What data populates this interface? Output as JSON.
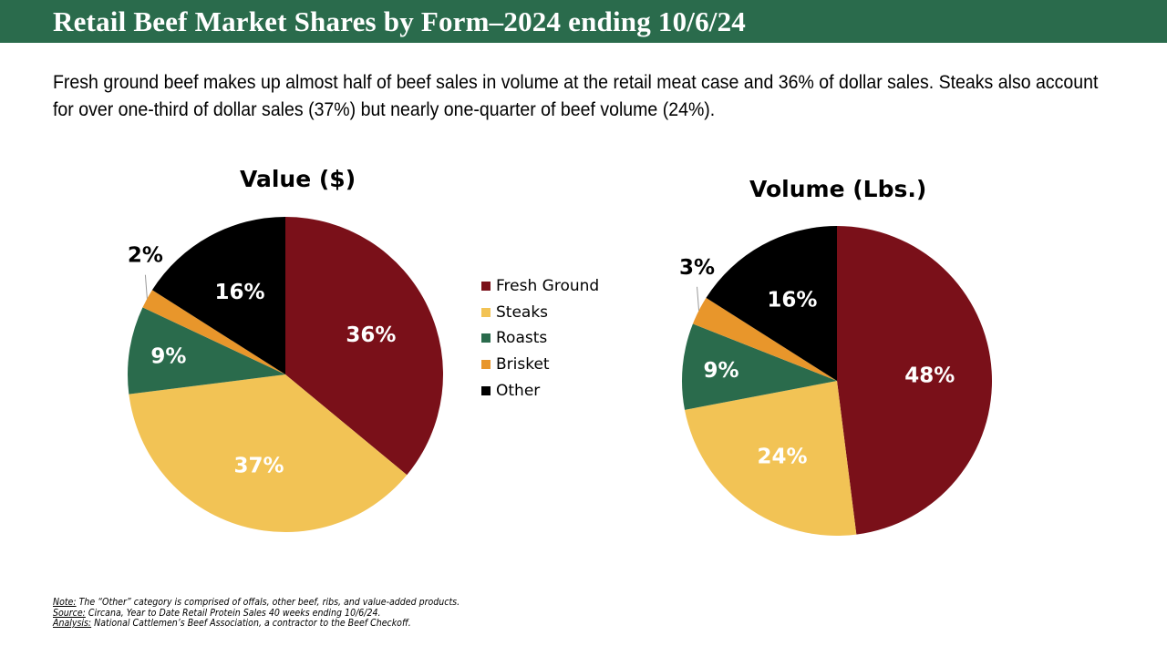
{
  "header": {
    "title": "Retail Beef Market Shares by Form–2024 ending 10/6/24"
  },
  "subtitle": "Fresh ground beef makes up almost half of beef sales in volume at the retail meat case and 36% of dollar sales.  Steaks also account for over one-third of dollar sales (37%) but nearly one-quarter of beef volume (24%).",
  "chart_data": [
    {
      "type": "pie",
      "title": "Value ($)",
      "categories": [
        "Fresh Ground",
        "Steaks",
        "Roasts",
        "Brisket",
        "Other"
      ],
      "values": [
        36,
        37,
        9,
        2,
        16
      ],
      "labels": [
        "36%",
        "37%",
        "9%",
        "2%",
        "16%"
      ]
    },
    {
      "type": "pie",
      "title": "Volume (Lbs.)",
      "categories": [
        "Fresh Ground",
        "Steaks",
        "Roasts",
        "Brisket",
        "Other"
      ],
      "values": [
        48,
        24,
        9,
        3,
        16
      ],
      "labels": [
        "48%",
        "24%",
        "9%",
        "3%",
        "16%"
      ]
    }
  ],
  "legend": {
    "placement": "between charts",
    "items": [
      {
        "label": "Fresh Ground",
        "color": "#7a1019"
      },
      {
        "label": "Steaks",
        "color": "#f2c355"
      },
      {
        "label": "Roasts",
        "color": "#2a6b4c"
      },
      {
        "label": "Brisket",
        "color": "#e8962b"
      },
      {
        "label": "Other",
        "color": "#000000"
      }
    ]
  },
  "notes": [
    {
      "label": "Note:",
      "text": " The “Other” category is comprised of offals, other beef, ribs, and value-added products."
    },
    {
      "label": "Source:",
      "text": " Circana, Year to Date  Retail Protein Sales 40 weeks ending 10/6/24."
    },
    {
      "label": "Analysis:",
      "text": " National Cattlemen’s Beef Association, a contractor to the Beef Checkoff."
    }
  ]
}
